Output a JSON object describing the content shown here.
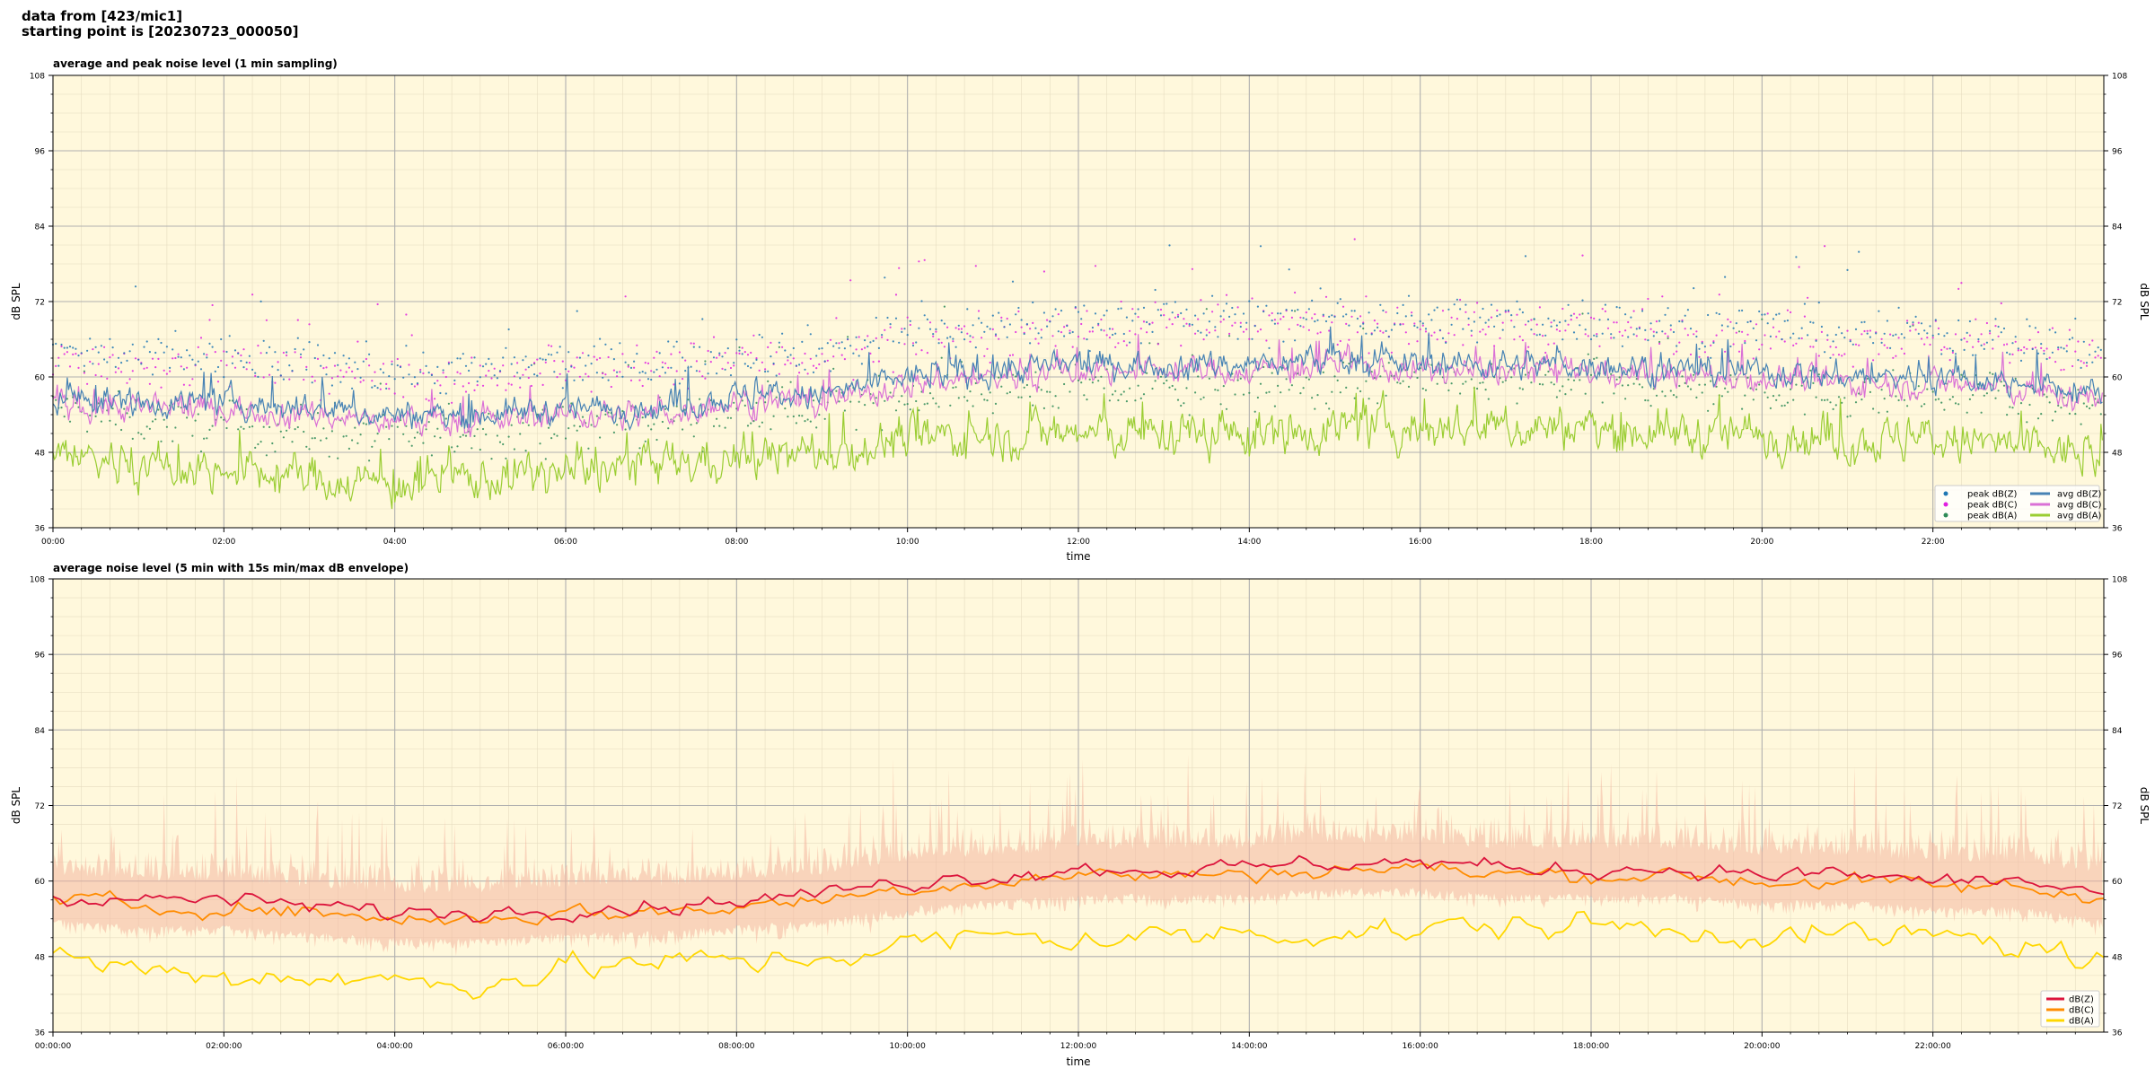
{
  "header": {
    "line1": "data from [423/mic1]",
    "line2": "starting point is [20230723_000050]"
  },
  "colors": {
    "background": "#fff8dc",
    "peak_z": "#1f77b4",
    "peak_c": "#e020e0",
    "peak_a": "#2e8b57",
    "avg_z": "#4682b4",
    "avg_c": "#da70d6",
    "avg_a": "#9acd32",
    "bottom_z": "#dc143c",
    "bottom_c": "#ff8c00",
    "bottom_a": "#ffd700",
    "envelope": "#f4b6a0"
  },
  "chart_data": [
    {
      "type": "line",
      "title": "average and peak noise level (1 min sampling)",
      "xlabel": "time",
      "ylabel": "dB SPL",
      "ylim": [
        36,
        108
      ],
      "xlim_hours": [
        0,
        24
      ],
      "y_ticks": [
        "36",
        "48",
        "60",
        "72",
        "84",
        "96",
        "108"
      ],
      "x_ticks": [
        "00:00",
        "02:00",
        "04:00",
        "06:00",
        "08:00",
        "10:00",
        "12:00",
        "14:00",
        "16:00",
        "18:00",
        "20:00",
        "22:00"
      ],
      "grid": true,
      "legend_position": "lower-right",
      "legend": [
        "peak dB(Z)",
        "peak dB(C)",
        "peak dB(A)",
        "avg dB(Z)",
        "avg dB(C)",
        "avg dB(A)"
      ],
      "series": [
        {
          "name": "avg dB(Z)",
          "x_hours": [
            0,
            1,
            2,
            3,
            4,
            5,
            6,
            7,
            8,
            9,
            10,
            11,
            12,
            13,
            14,
            15,
            16,
            17,
            18,
            19,
            20,
            21,
            22,
            23,
            24
          ],
          "values": [
            57,
            56,
            56,
            55,
            54,
            54,
            55,
            55,
            57,
            57,
            60,
            61,
            62,
            62,
            62,
            63,
            62,
            62,
            62,
            61,
            61,
            60,
            60,
            59,
            57
          ]
        },
        {
          "name": "avg dB(C)",
          "x_hours": [
            0,
            1,
            2,
            3,
            4,
            5,
            6,
            7,
            8,
            9,
            10,
            11,
            12,
            13,
            14,
            15,
            16,
            17,
            18,
            19,
            20,
            21,
            22,
            23,
            24
          ],
          "values": [
            56,
            55,
            55,
            54,
            53,
            53,
            54,
            54,
            56,
            56,
            59,
            60,
            61,
            61,
            61,
            62,
            61,
            61,
            61,
            60,
            60,
            59,
            59,
            58,
            56
          ]
        },
        {
          "name": "avg dB(A)",
          "x_hours": [
            0,
            1,
            2,
            3,
            4,
            5,
            6,
            7,
            8,
            9,
            10,
            11,
            12,
            13,
            14,
            15,
            16,
            17,
            18,
            19,
            20,
            21,
            22,
            23,
            24
          ],
          "values": [
            48,
            46,
            45,
            44,
            43,
            44,
            45,
            46,
            47,
            48,
            50,
            51,
            51,
            51,
            51,
            52,
            52,
            52,
            52,
            51,
            51,
            50,
            50,
            49,
            47
          ]
        },
        {
          "name": "peak dB(Z)",
          "x_hours": [
            0,
            1,
            2,
            3,
            4,
            5,
            6,
            7,
            8,
            9,
            10,
            11,
            12,
            13,
            14,
            15,
            16,
            17,
            18,
            19,
            20,
            21,
            22,
            23,
            24
          ],
          "values": [
            64,
            63,
            63,
            62,
            61,
            61,
            62,
            62,
            64,
            64,
            67,
            68,
            69,
            69,
            69,
            70,
            69,
            69,
            69,
            68,
            68,
            67,
            67,
            66,
            64
          ]
        },
        {
          "name": "peak dB(C)",
          "x_hours": [
            0,
            1,
            2,
            3,
            4,
            5,
            6,
            7,
            8,
            9,
            10,
            11,
            12,
            13,
            14,
            15,
            16,
            17,
            18,
            19,
            20,
            21,
            22,
            23,
            24
          ],
          "values": [
            63,
            62,
            62,
            61,
            60,
            60,
            61,
            61,
            63,
            63,
            66,
            67,
            68,
            68,
            68,
            69,
            68,
            68,
            68,
            67,
            67,
            66,
            66,
            65,
            63
          ]
        },
        {
          "name": "peak dB(A)",
          "x_hours": [
            0,
            1,
            2,
            3,
            4,
            5,
            6,
            7,
            8,
            9,
            10,
            11,
            12,
            13,
            14,
            15,
            16,
            17,
            18,
            19,
            20,
            21,
            22,
            23,
            24
          ],
          "values": [
            55,
            53,
            52,
            51,
            50,
            51,
            52,
            53,
            54,
            55,
            57,
            58,
            58,
            58,
            58,
            59,
            59,
            59,
            59,
            58,
            58,
            57,
            57,
            56,
            54
          ]
        }
      ]
    },
    {
      "type": "line",
      "title": "average noise level (5 min with 15s min/max dB envelope)",
      "xlabel": "time",
      "ylabel": "dB SPL",
      "ylim": [
        36,
        108
      ],
      "xlim_hours": [
        0,
        24
      ],
      "y_ticks": [
        "36",
        "48",
        "60",
        "72",
        "84",
        "96",
        "108"
      ],
      "x_ticks": [
        "00:00:00",
        "02:00:00",
        "04:00:00",
        "06:00:00",
        "08:00:00",
        "10:00:00",
        "12:00:00",
        "14:00:00",
        "16:00:00",
        "18:00:00",
        "20:00:00",
        "22:00:00"
      ],
      "grid": true,
      "legend_position": "lower-right",
      "legend": [
        "dB(Z)",
        "dB(C)",
        "dB(A)"
      ],
      "series": [
        {
          "name": "dB(Z)",
          "x_hours": [
            0,
            1,
            2,
            3,
            4,
            5,
            6,
            7,
            8,
            9,
            10,
            11,
            12,
            13,
            14,
            15,
            16,
            17,
            18,
            19,
            20,
            21,
            22,
            23,
            24
          ],
          "values": [
            58,
            57,
            57,
            56,
            55,
            55,
            56,
            56,
            57,
            58,
            60,
            61,
            62,
            62,
            62,
            63,
            63,
            62,
            62,
            62,
            61,
            61,
            60,
            60,
            58
          ]
        },
        {
          "name": "dB(C)",
          "x_hours": [
            0,
            1,
            2,
            3,
            4,
            5,
            6,
            7,
            8,
            9,
            10,
            11,
            12,
            13,
            14,
            15,
            16,
            17,
            18,
            19,
            20,
            21,
            22,
            23,
            24
          ],
          "values": [
            57,
            56,
            56,
            55,
            54,
            54,
            55,
            55,
            56,
            57,
            59,
            60,
            61,
            61,
            61,
            62,
            62,
            61,
            61,
            61,
            60,
            60,
            59,
            59,
            57
          ]
        },
        {
          "name": "dB(A)",
          "x_hours": [
            0,
            1,
            2,
            3,
            4,
            5,
            6,
            7,
            8,
            9,
            10,
            11,
            12,
            13,
            14,
            15,
            16,
            17,
            18,
            19,
            20,
            21,
            22,
            23,
            24
          ],
          "values": [
            48,
            46,
            45,
            45,
            44,
            44,
            46,
            47,
            47,
            48,
            50,
            51,
            51,
            51,
            52,
            52,
            52,
            53,
            53,
            52,
            52,
            51,
            51,
            50,
            47
          ]
        }
      ]
    }
  ]
}
